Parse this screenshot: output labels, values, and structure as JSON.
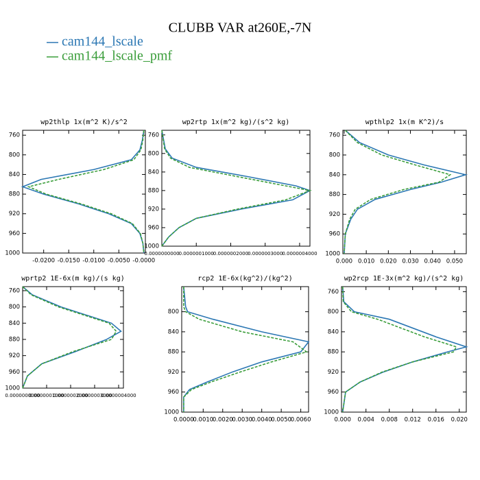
{
  "title": "CLUBB VAR at260E,-7N",
  "chart_data": [
    {
      "type": "line",
      "title": "wp2thlp  1x(m^2 K)/s^2",
      "y_inverted": true,
      "y": [
        750,
        770,
        790,
        810,
        830,
        850,
        865,
        880,
        900,
        920,
        940,
        960,
        980,
        1000
      ],
      "series": [
        {
          "name": "cam144_lscale",
          "color": "#2b77b3",
          "dashed": false,
          "values": [
            0,
            -0.0003,
            -0.0008,
            -0.0025,
            -0.01,
            -0.0205,
            -0.0242,
            -0.02,
            -0.013,
            -0.007,
            -0.0025,
            -0.0008,
            -0.0002,
            0
          ]
        },
        {
          "name": "cam144_lscale_pmf",
          "color": "#3a9d3a",
          "dashed": true,
          "values": [
            0,
            -0.0002,
            -0.0006,
            -0.002,
            -0.008,
            -0.017,
            -0.023,
            -0.0195,
            -0.0125,
            -0.0065,
            -0.0023,
            -0.0007,
            -0.0002,
            0
          ]
        }
      ],
      "xlim": [
        -0.0242,
        0.0003
      ],
      "xticks": [
        {
          "value": -0.02,
          "label": "-0.0200"
        },
        {
          "value": -0.015,
          "label": "-0.0150"
        },
        {
          "value": -0.01,
          "label": "-0.0100"
        },
        {
          "value": -0.005,
          "label": "-0.0050"
        },
        {
          "value": 0,
          "label": "-0.0000"
        }
      ],
      "ylim": [
        750,
        1000
      ],
      "yticks": [
        760,
        800,
        840,
        880,
        920,
        960,
        1000
      ]
    },
    {
      "type": "line",
      "title": "wp2rtp  1x(m^2 kg)/(s^2 kg)",
      "y_inverted": true,
      "y": [
        750,
        770,
        790,
        810,
        830,
        850,
        870,
        880,
        900,
        920,
        940,
        960,
        980,
        1000
      ],
      "series": [
        {
          "name": "cam144_lscale",
          "color": "#2b77b3",
          "dashed": false,
          "values": [
            0,
            5e-09,
            1e-08,
            3e-08,
            1e-07,
            2.5e-07,
            3.9e-07,
            4.3e-07,
            3.8e-07,
            2.3e-07,
            1e-07,
            5e-08,
            2e-08,
            0
          ]
        },
        {
          "name": "cam144_lscale_pmf",
          "color": "#3a9d3a",
          "dashed": true,
          "values": [
            0,
            4e-09,
            8e-09,
            2.5e-08,
            8e-08,
            2.2e-07,
            3.6e-07,
            4.3e-07,
            3.6e-07,
            2.2e-07,
            1e-07,
            5e-08,
            2e-08,
            0
          ]
        }
      ],
      "xlim": [
        0,
        4.3e-07
      ],
      "xticks": [
        {
          "value": 0,
          "label": "0.0000000000"
        },
        {
          "value": 1e-07,
          "label": "0.0000001000"
        },
        {
          "value": 2e-07,
          "label": "0.0000002000"
        },
        {
          "value": 3e-07,
          "label": "0.0000003000"
        },
        {
          "value": 4e-07,
          "label": "0.0000004000"
        }
      ],
      "ylim": [
        750,
        1000
      ],
      "yticks": [
        760,
        800,
        840,
        880,
        920,
        960,
        1000
      ]
    },
    {
      "type": "line",
      "title": "wpthlp2  1x(m K^2)/s",
      "y_inverted": true,
      "y": [
        750,
        775,
        800,
        820,
        840,
        855,
        870,
        890,
        910,
        930,
        960,
        1000
      ],
      "series": [
        {
          "name": "cam144_lscale",
          "color": "#2b77b3",
          "dashed": false,
          "values": [
            0.0005,
            0.007,
            0.02,
            0.036,
            0.055,
            0.044,
            0.03,
            0.014,
            0.006,
            0.003,
            0.0005,
            0
          ]
        },
        {
          "name": "cam144_lscale_pmf",
          "color": "#3a9d3a",
          "dashed": true,
          "values": [
            0.0005,
            0.006,
            0.017,
            0.032,
            0.048,
            0.043,
            0.027,
            0.012,
            0.005,
            0.0025,
            0.0005,
            0
          ]
        }
      ],
      "xlim": [
        -0.0006,
        0.0553
      ],
      "xticks": [
        {
          "value": 0,
          "label": "0.000"
        },
        {
          "value": 0.01,
          "label": "0.010"
        },
        {
          "value": 0.02,
          "label": "0.020"
        },
        {
          "value": 0.03,
          "label": "0.030"
        },
        {
          "value": 0.04,
          "label": "0.040"
        },
        {
          "value": 0.05,
          "label": "0.050"
        }
      ],
      "ylim": [
        750,
        1000
      ],
      "yticks": [
        760,
        800,
        840,
        880,
        920,
        960,
        1000
      ]
    },
    {
      "type": "line",
      "title": "wprtp2  1E-6x(m kg)/(s kg)",
      "y_inverted": true,
      "y": [
        750,
        770,
        800,
        840,
        860,
        880,
        910,
        940,
        970,
        1000
      ],
      "series": [
        {
          "name": "cam144_lscale",
          "color": "#2b77b3",
          "dashed": false,
          "values": [
            0,
            4e-08,
            1.6e-07,
            3.7e-07,
            4.1e-07,
            3.5e-07,
            2.2e-07,
            8e-08,
            2e-08,
            0
          ]
        },
        {
          "name": "cam144_lscale_pmf",
          "color": "#3a9d3a",
          "dashed": true,
          "values": [
            0,
            3.5e-08,
            1.5e-07,
            3.6e-07,
            3.9e-07,
            3.7e-07,
            2.1e-07,
            8e-08,
            2e-08,
            0
          ]
        }
      ],
      "xlim": [
        0,
        4.2e-07
      ],
      "xticks": [
        {
          "value": 0,
          "label": "0.0000000000"
        },
        {
          "value": 1e-07,
          "label": "0.0000001000"
        },
        {
          "value": 2e-07,
          "label": "0.0000002000"
        },
        {
          "value": 3e-07,
          "label": "0.0000003000"
        },
        {
          "value": 4e-07,
          "label": "0.0000004000"
        }
      ],
      "ylim": [
        750,
        1000
      ],
      "yticks": [
        760,
        800,
        840,
        880,
        920,
        960,
        1000
      ]
    },
    {
      "type": "line",
      "title": "rcp2  1E-6x(kg^2)/(kg^2)",
      "y_inverted": true,
      "y": [
        750,
        790,
        800,
        815,
        840,
        860,
        880,
        900,
        920,
        940,
        955,
        970,
        1000
      ],
      "series": [
        {
          "name": "cam144_lscale",
          "color": "#2b77b3",
          "dashed": false,
          "values": [
            0,
            0.0001,
            0.0002,
            0.0015,
            0.004,
            0.0064,
            0.006,
            0.004,
            0.0025,
            0.0012,
            0.0003,
            0,
            0
          ]
        },
        {
          "name": "cam144_lscale_pmf",
          "color": "#3a9d3a",
          "dashed": true,
          "values": [
            0,
            0,
            0.0001,
            0.0008,
            0.003,
            0.0056,
            0.0063,
            0.0045,
            0.0029,
            0.0014,
            0.0004,
            0,
            0
          ]
        }
      ],
      "xlim": [
        -0.0001,
        0.0064
      ],
      "xticks": [
        {
          "value": 0,
          "label": "0.0000"
        },
        {
          "value": 0.001,
          "label": "0.0010"
        },
        {
          "value": 0.002,
          "label": "0.0020"
        },
        {
          "value": 0.003,
          "label": "0.0030"
        },
        {
          "value": 0.004,
          "label": "0.0040"
        },
        {
          "value": 0.005,
          "label": "0.0050"
        },
        {
          "value": 0.006,
          "label": "0.0060"
        }
      ],
      "ylim": [
        750,
        1000
      ],
      "yticks": [
        800,
        840,
        880,
        920,
        960,
        1000
      ]
    },
    {
      "type": "line",
      "title": "wp2rcp  1E-3x(m^2 kg)/(s^2 kg)",
      "y_inverted": true,
      "y": [
        750,
        780,
        800,
        815,
        850,
        870,
        880,
        900,
        920,
        940,
        960,
        1000
      ],
      "series": [
        {
          "name": "cam144_lscale",
          "color": "#2b77b3",
          "dashed": false,
          "values": [
            0,
            0.0002,
            0.002,
            0.008,
            0.016,
            0.0212,
            0.018,
            0.012,
            0.007,
            0.003,
            0.0005,
            0
          ]
        },
        {
          "name": "cam144_lscale_pmf",
          "color": "#3a9d3a",
          "dashed": true,
          "values": [
            0,
            0.0001,
            0.0015,
            0.006,
            0.014,
            0.0195,
            0.019,
            0.012,
            0.0068,
            0.003,
            0.0005,
            0
          ]
        }
      ],
      "xlim": [
        -0.0002,
        0.0212
      ],
      "xticks": [
        {
          "value": 0,
          "label": "0.000"
        },
        {
          "value": 0.004,
          "label": "0.004"
        },
        {
          "value": 0.008,
          "label": "0.008"
        },
        {
          "value": 0.012,
          "label": "0.012"
        },
        {
          "value": 0.016,
          "label": "0.016"
        },
        {
          "value": 0.02,
          "label": "0.020"
        }
      ],
      "ylim": [
        750,
        1000
      ],
      "yticks": [
        760,
        800,
        840,
        880,
        920,
        960,
        1000
      ]
    }
  ]
}
